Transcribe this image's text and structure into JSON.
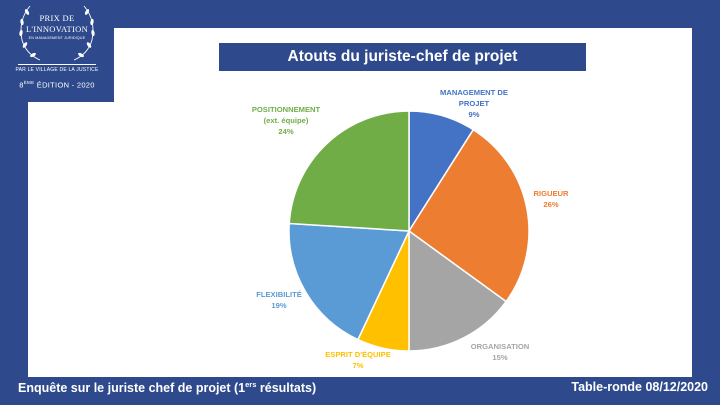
{
  "logo": {
    "line1": "PRIX DE",
    "line2": "L'INNOVATION",
    "line3": "EN MANAGEMENT JURIDIQUE",
    "line4": "PAR LE VILLAGE DE LA JUSTICE",
    "edition_num": "8",
    "edition_sup": "ÈME",
    "edition_rest": " ÉDITION - 2020",
    "color": "#ffffff"
  },
  "footer": {
    "left_main": "Enquête sur le juriste chef de projet (1",
    "left_sup": "ers",
    "left_end": " résultats)",
    "right": "Table-ronde 08/12/2020"
  },
  "colors": {
    "frame": "#2e4a8c",
    "content": "#ffffff"
  },
  "chart_data": {
    "type": "pie",
    "title": "Atouts du juriste-chef de projet",
    "slices": [
      {
        "lines": [
          "MANAGEMENT DE",
          "PROJET"
        ],
        "pct": "9%",
        "value": 9,
        "color": "#4472c4"
      },
      {
        "lines": [
          "RIGUEUR"
        ],
        "pct": "26%",
        "value": 26,
        "color": "#ed7d31"
      },
      {
        "lines": [
          "ORGANISATION"
        ],
        "pct": "15%",
        "value": 15,
        "color": "#a5a5a5"
      },
      {
        "lines": [
          "ESPRIT D'ÉQUIPE"
        ],
        "pct": "7%",
        "value": 7,
        "color": "#ffc000"
      },
      {
        "lines": [
          "FLEXIBILITÉ"
        ],
        "pct": "19%",
        "value": 19,
        "color": "#5b9bd5"
      },
      {
        "lines": [
          "POSITIONNEMENT",
          "(ext. équipe)"
        ],
        "pct": "24%",
        "value": 24,
        "color": "#70ad47"
      }
    ]
  }
}
